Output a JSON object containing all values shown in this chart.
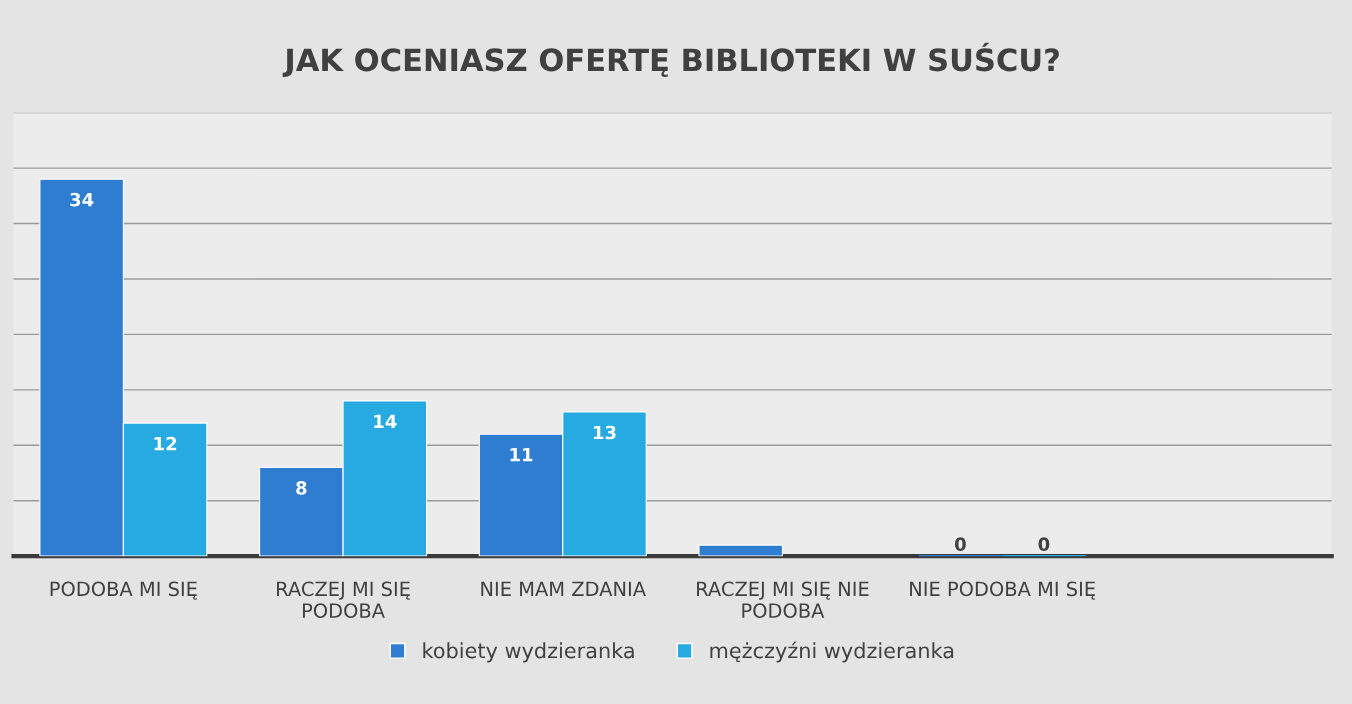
{
  "chart_data": {
    "type": "bar",
    "title": "JAK OCENIASZ OFERTĘ BIBLIOTEKI W SUŚCU?",
    "categories": [
      "PODOBA MI SIĘ",
      "RACZEJ MI SIĘ PODOBA",
      "NIE MAM ZDANIA",
      "RACZEJ MI SIĘ NIE PODOBA",
      "NIE PODOBA MI SIĘ",
      null
    ],
    "series": [
      {
        "name": "kobiety wydzieranka",
        "color": "#2e7dd1",
        "values": [
          34,
          8,
          11,
          1,
          0,
          null
        ],
        "value_labels": [
          "34",
          "8",
          "11",
          null,
          "0",
          null
        ]
      },
      {
        "name": "mężczyźni wydzieranka",
        "color": "#27aae1",
        "values": [
          12,
          14,
          13,
          null,
          0,
          null
        ],
        "value_labels": [
          "12",
          "14",
          "13",
          null,
          "0",
          null
        ]
      }
    ],
    "ylim": [
      0,
      40
    ],
    "yticks": [
      {
        "value": 0,
        "label": null
      },
      {
        "value": 5,
        "label": null
      },
      {
        "value": 10,
        "label": null
      },
      {
        "value": 15,
        "label": null
      },
      {
        "value": 20,
        "label": null
      },
      {
        "value": 25,
        "label": null
      },
      {
        "value": 30,
        "label": null
      },
      {
        "value": 35,
        "label": null
      },
      {
        "value": 40,
        "label": null
      }
    ],
    "tick_labels": "x",
    "grid": "y",
    "legend": "bottom"
  }
}
